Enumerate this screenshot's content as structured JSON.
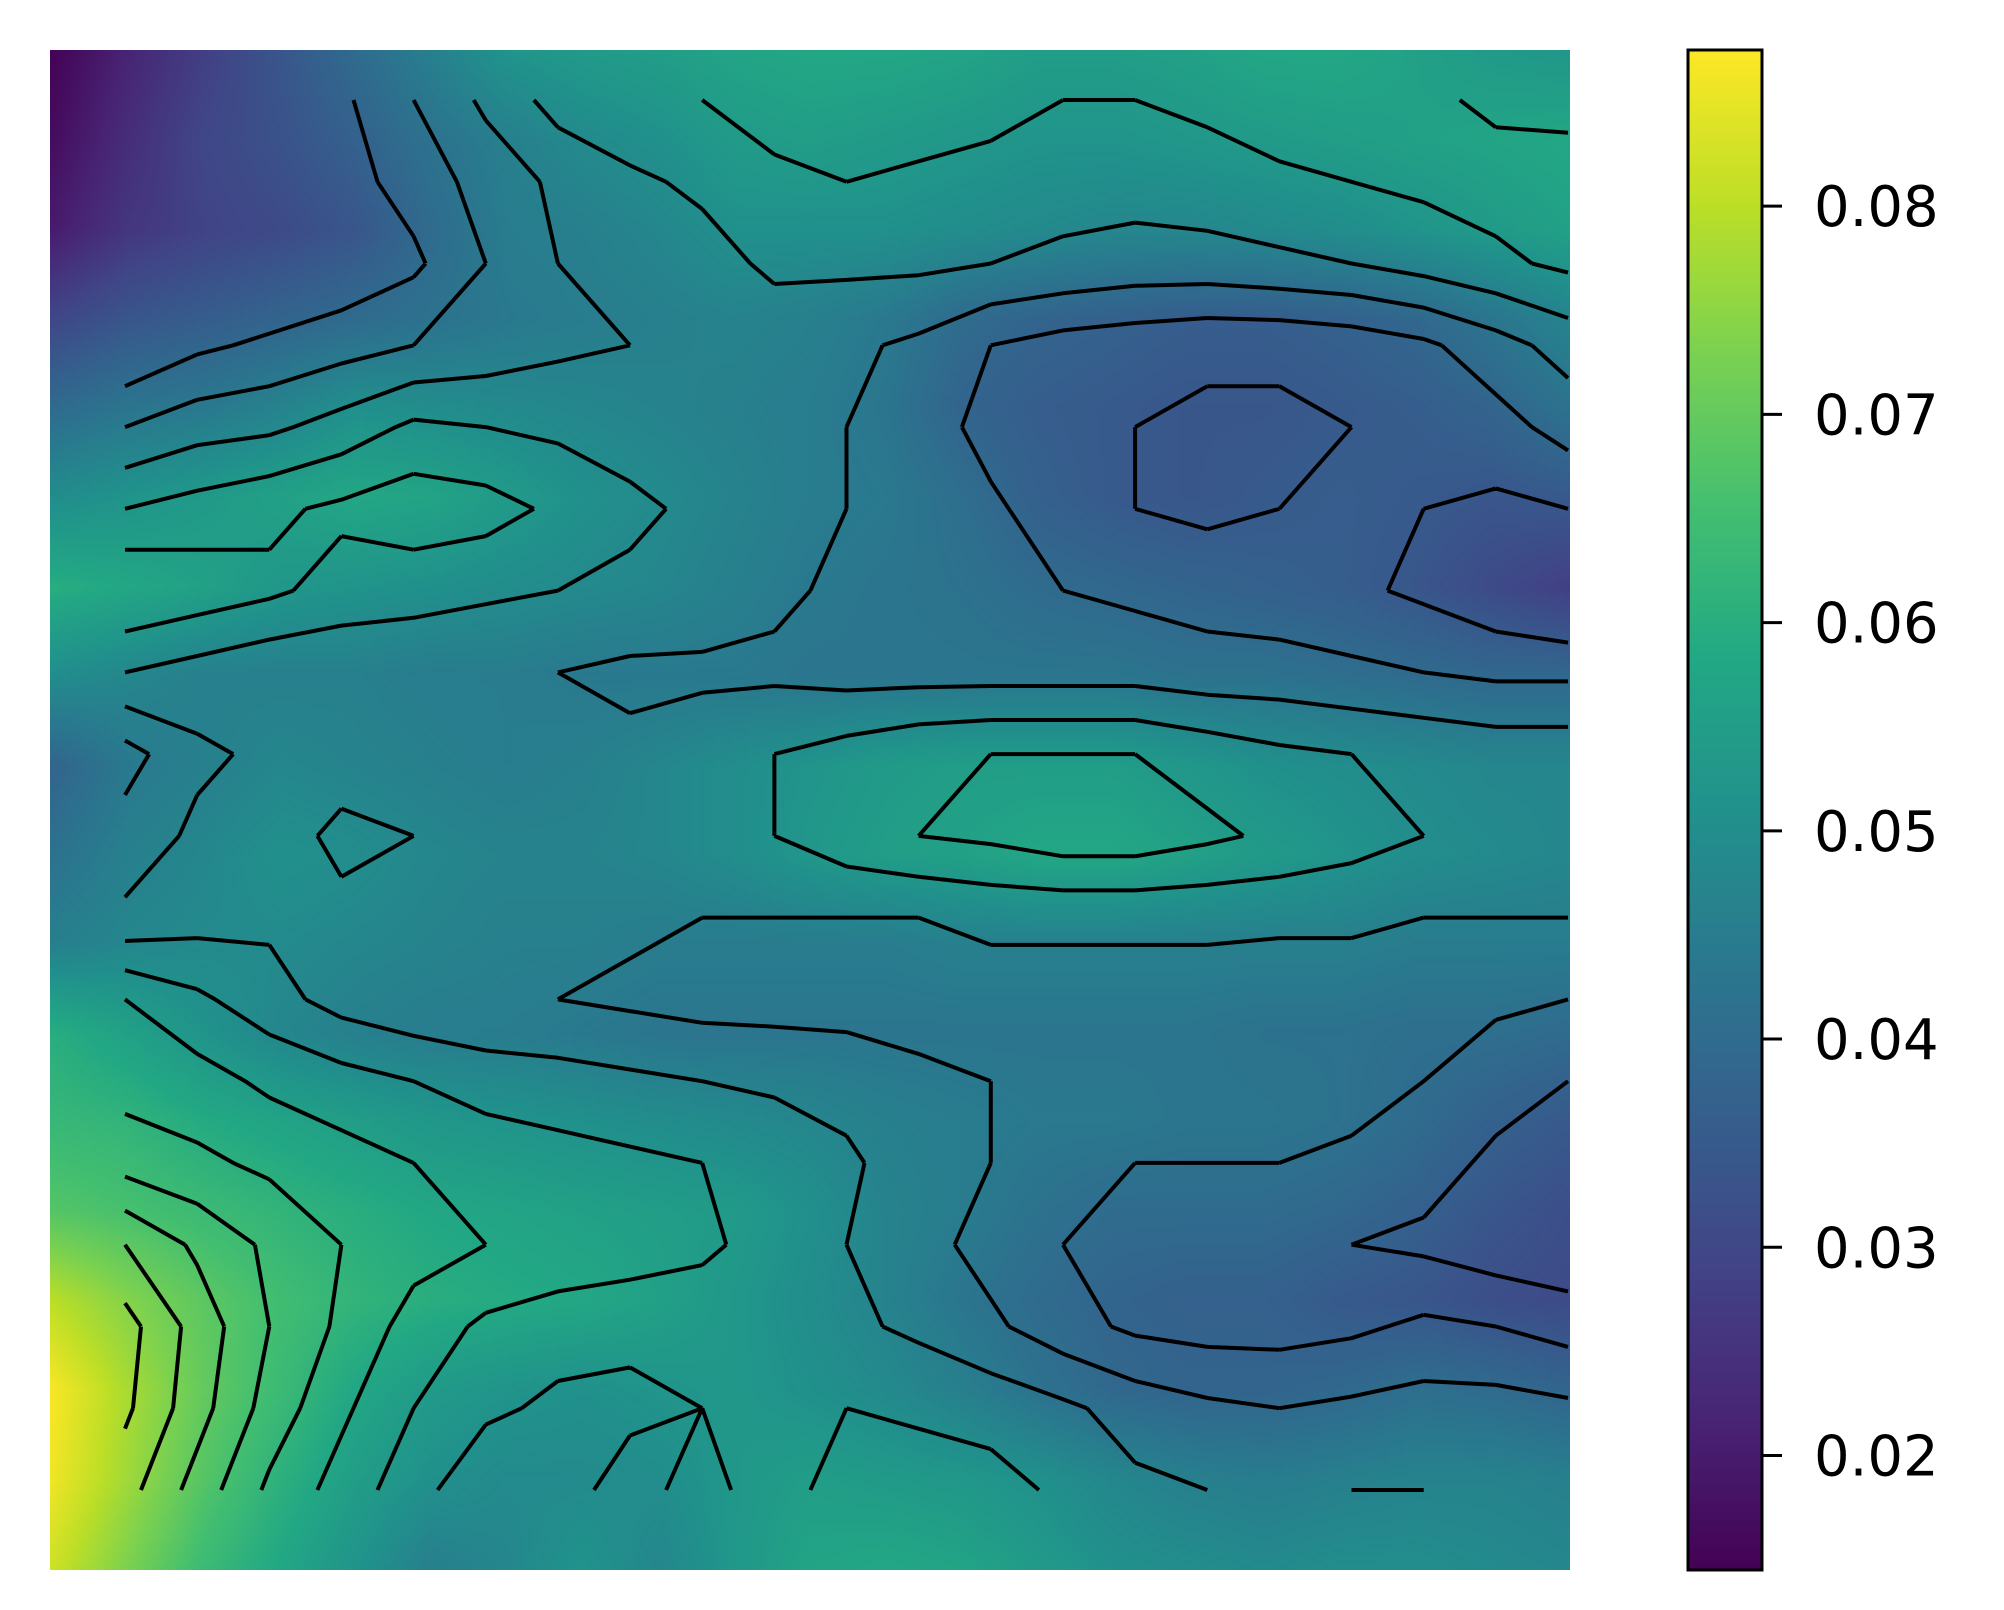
{
  "chart_data": {
    "type": "heatmap",
    "title": "",
    "xlabel": "",
    "ylabel": "",
    "colormap": "viridis",
    "grid": false,
    "axes_visible": false,
    "colorbar": {
      "position": "right",
      "range": [
        0.0145,
        0.0875
      ],
      "ticks": [
        0.02,
        0.03,
        0.04,
        0.05,
        0.06,
        0.07,
        0.08
      ],
      "tick_labels": [
        "0.02",
        "0.03",
        "0.04",
        "0.05",
        "0.06",
        "0.07",
        "0.08"
      ]
    },
    "z": [
      [
        0.015,
        0.022,
        0.028,
        0.034,
        0.04,
        0.046,
        0.052,
        0.054,
        0.055,
        0.057,
        0.058,
        0.058,
        0.057,
        0.055,
        0.055,
        0.056,
        0.058,
        0.058,
        0.056,
        0.054,
        0.053
      ],
      [
        0.017,
        0.024,
        0.03,
        0.033,
        0.037,
        0.042,
        0.046,
        0.049,
        0.051,
        0.054,
        0.055,
        0.054,
        0.053,
        0.052,
        0.052,
        0.053,
        0.054,
        0.055,
        0.056,
        0.057,
        0.058
      ],
      [
        0.02,
        0.026,
        0.029,
        0.031,
        0.034,
        0.04,
        0.045,
        0.046,
        0.048,
        0.051,
        0.051,
        0.051,
        0.05,
        0.049,
        0.048,
        0.048,
        0.049,
        0.05,
        0.052,
        0.054,
        0.056
      ],
      [
        0.03,
        0.034,
        0.036,
        0.038,
        0.04,
        0.042,
        0.044,
        0.045,
        0.046,
        0.047,
        0.046,
        0.044,
        0.04,
        0.038,
        0.037,
        0.036,
        0.036,
        0.037,
        0.039,
        0.043,
        0.047
      ],
      [
        0.04,
        0.043,
        0.044,
        0.047,
        0.051,
        0.05,
        0.049,
        0.048,
        0.047,
        0.046,
        0.045,
        0.043,
        0.038,
        0.036,
        0.035,
        0.034,
        0.034,
        0.035,
        0.036,
        0.038,
        0.042
      ],
      [
        0.05,
        0.052,
        0.054,
        0.056,
        0.058,
        0.057,
        0.054,
        0.051,
        0.049,
        0.047,
        0.045,
        0.044,
        0.041,
        0.037,
        0.035,
        0.034,
        0.035,
        0.036,
        0.035,
        0.034,
        0.035
      ],
      [
        0.06,
        0.058,
        0.056,
        0.053,
        0.052,
        0.051,
        0.05,
        0.049,
        0.048,
        0.046,
        0.044,
        0.043,
        0.042,
        0.04,
        0.039,
        0.038,
        0.037,
        0.036,
        0.034,
        0.031,
        0.028
      ],
      [
        0.05,
        0.048,
        0.046,
        0.046,
        0.046,
        0.045,
        0.045,
        0.044,
        0.044,
        0.044,
        0.043,
        0.043,
        0.043,
        0.043,
        0.043,
        0.042,
        0.042,
        0.041,
        0.04,
        0.039,
        0.039
      ],
      [
        0.038,
        0.044,
        0.046,
        0.048,
        0.047,
        0.046,
        0.045,
        0.046,
        0.048,
        0.05,
        0.052,
        0.054,
        0.055,
        0.055,
        0.055,
        0.053,
        0.051,
        0.05,
        0.049,
        0.048,
        0.048
      ],
      [
        0.042,
        0.046,
        0.048,
        0.051,
        0.05,
        0.048,
        0.047,
        0.047,
        0.048,
        0.05,
        0.053,
        0.055,
        0.056,
        0.058,
        0.058,
        0.056,
        0.054,
        0.052,
        0.05,
        0.049,
        0.048
      ],
      [
        0.046,
        0.048,
        0.049,
        0.049,
        0.048,
        0.047,
        0.046,
        0.046,
        0.045,
        0.045,
        0.045,
        0.045,
        0.046,
        0.046,
        0.046,
        0.046,
        0.046,
        0.046,
        0.045,
        0.045,
        0.045
      ],
      [
        0.06,
        0.056,
        0.052,
        0.048,
        0.046,
        0.045,
        0.045,
        0.044,
        0.043,
        0.043,
        0.043,
        0.043,
        0.043,
        0.043,
        0.043,
        0.043,
        0.042,
        0.042,
        0.041,
        0.041,
        0.04
      ],
      [
        0.063,
        0.062,
        0.059,
        0.057,
        0.055,
        0.053,
        0.052,
        0.051,
        0.05,
        0.049,
        0.048,
        0.046,
        0.045,
        0.044,
        0.044,
        0.043,
        0.043,
        0.042,
        0.04,
        0.037,
        0.035
      ],
      [
        0.068,
        0.066,
        0.064,
        0.062,
        0.06,
        0.058,
        0.057,
        0.056,
        0.055,
        0.054,
        0.051,
        0.047,
        0.045,
        0.042,
        0.04,
        0.04,
        0.04,
        0.039,
        0.037,
        0.034,
        0.032
      ],
      [
        0.08,
        0.074,
        0.069,
        0.065,
        0.062,
        0.06,
        0.059,
        0.058,
        0.056,
        0.053,
        0.05,
        0.047,
        0.043,
        0.04,
        0.038,
        0.037,
        0.037,
        0.035,
        0.034,
        0.032,
        0.031
      ],
      [
        0.087,
        0.078,
        0.07,
        0.064,
        0.058,
        0.054,
        0.052,
        0.051,
        0.052,
        0.053,
        0.051,
        0.049,
        0.046,
        0.042,
        0.039,
        0.038,
        0.038,
        0.039,
        0.041,
        0.04,
        0.038
      ],
      [
        0.086,
        0.077,
        0.068,
        0.061,
        0.055,
        0.051,
        0.049,
        0.049,
        0.05,
        0.053,
        0.055,
        0.054,
        0.053,
        0.051,
        0.048,
        0.046,
        0.045,
        0.046,
        0.047,
        0.047,
        0.046
      ],
      [
        0.082,
        0.073,
        0.064,
        0.058,
        0.052,
        0.046,
        0.048,
        0.052,
        0.048,
        0.053,
        0.057,
        0.058,
        0.057,
        0.054,
        0.051,
        0.05,
        0.049,
        0.05,
        0.05,
        0.049,
        0.048
      ]
    ],
    "contour_levels": [
      0.035,
      0.04,
      0.045,
      0.05,
      0.055,
      0.06,
      0.065,
      0.07,
      0.075,
      0.08,
      0.085
    ]
  }
}
